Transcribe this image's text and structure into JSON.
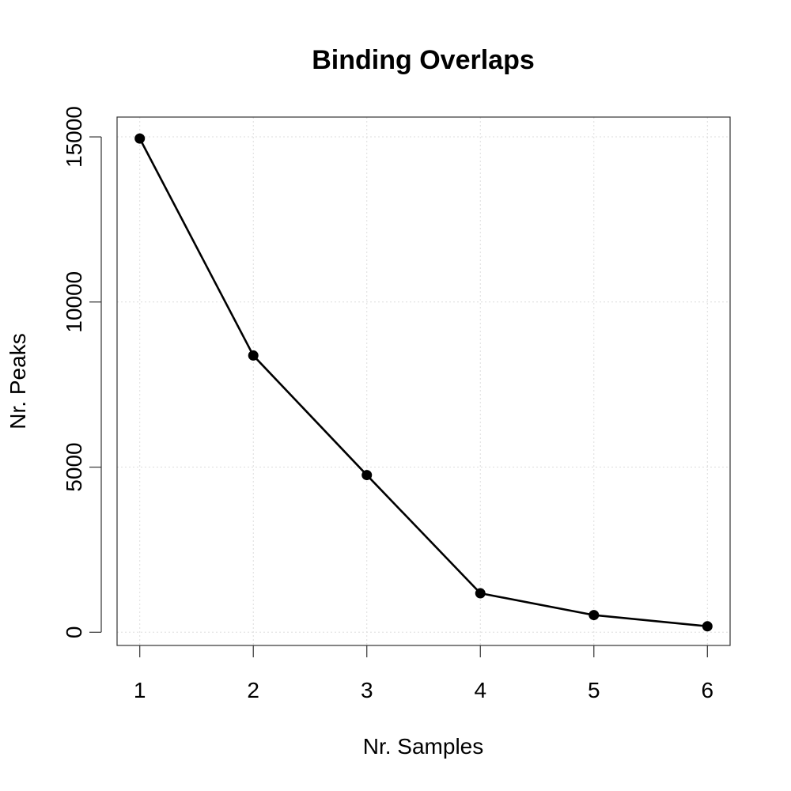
{
  "chart_data": {
    "type": "line",
    "title": "Binding Overlaps",
    "xlabel": "Nr. Samples",
    "ylabel": "Nr. Peaks",
    "x": [
      1,
      2,
      3,
      4,
      5,
      6
    ],
    "series": [
      {
        "values": [
          14950,
          8380,
          4760,
          1180,
          520,
          180
        ],
        "color": "#000000",
        "marker": "filled-circle"
      }
    ],
    "xticks": [
      "1",
      "2",
      "3",
      "4",
      "5",
      "6"
    ],
    "yticks": [
      "0",
      "5000",
      "10000",
      "15000"
    ],
    "xlim": [
      0.8,
      6.2
    ],
    "ylim": [
      -400,
      15600
    ],
    "grid": true,
    "grid_style": "dotted-light-gray"
  }
}
